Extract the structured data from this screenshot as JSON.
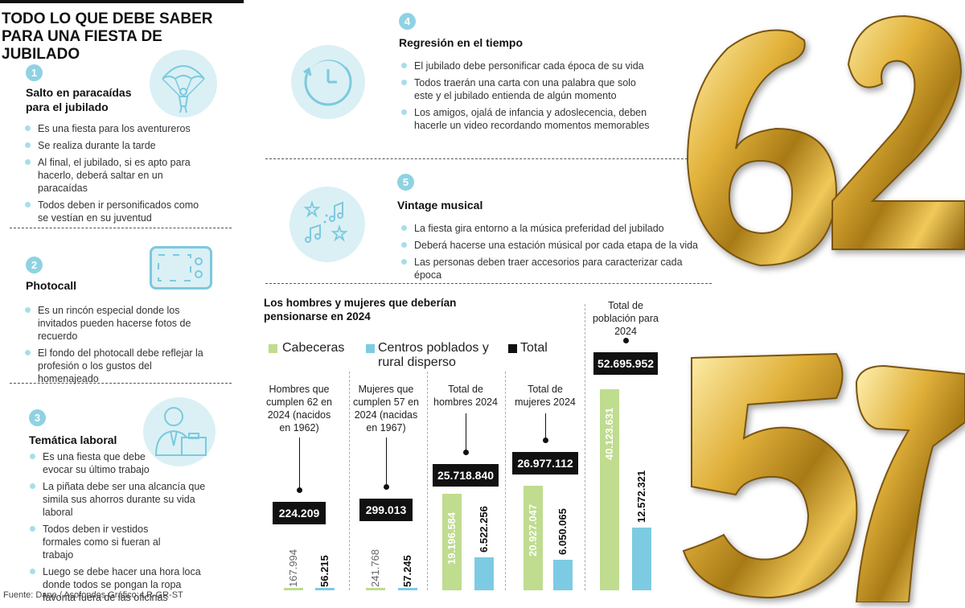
{
  "title": "TODO LO QUE DEBE SABER PARA UNA FIESTA DE JUBILADO",
  "sections": [
    {
      "num": "1",
      "title": "Salto en paracaídas para el jubilado",
      "icon": "parachute-icon",
      "bullets": [
        "Es una fiesta para los aventureros",
        "Se realiza durante la tarde",
        "Al final, el jubilado, si es apto para hacerlo, deberá saltar en un paracaídas",
        "Todos deben ir personificados como se vestían en su juventud"
      ]
    },
    {
      "num": "2",
      "title": "Photocall",
      "icon": "photo-frame-icon",
      "bullets": [
        "Es un rincón especial donde los invitados pueden hacerse fotos de recuerdo",
        "El fondo del photocall debe  reflejar la profesión o los gustos del homenajeado"
      ]
    },
    {
      "num": "3",
      "title": "Temática laboral",
      "icon": "businessman-icon",
      "bullets": [
        "Es una fiesta que debe evocar su último trabajo",
        "La piñata debe ser una alcancía que simila sus ahorros durante su vida laboral",
        "Todos deben ir vestidos formales como si fueran al trabajo",
        "Luego se debe hacer una hora loca donde todos se pongan la ropa favorita fuera de las oficinas"
      ]
    },
    {
      "num": "4",
      "title": "Regresión en el tiempo",
      "icon": "clock-icon",
      "bullets": [
        "El jubilado debe personificar cada época de su vida",
        "Todos traerán una carta con una palabra que solo este y el jubilado entienda de algún momento",
        "Los amigos, ojalá de infancia y adoslecencia, deben hacerle un video recordando momentos memorables"
      ]
    },
    {
      "num": "5",
      "title": "Vintage musical",
      "icon": "music-notes-icon",
      "bullets": [
        "La fiesta gira entorno a la música preferidad del jubilado",
        "Deberá hacerse una estación músical por cada etapa de la vida",
        "Las personas deben traer accesorios para caracterizar cada época"
      ]
    }
  ],
  "balloons": {
    "top": "62",
    "bottom": "57"
  },
  "chart_data": {
    "type": "bar",
    "title": "Los hombres y mujeres que deberían pensionarse en 2024",
    "legend": [
      {
        "name": "Cabeceras",
        "color": "#bfdc8f"
      },
      {
        "name": "Centros poblados y rural disperso",
        "color": "#7dcbe3"
      },
      {
        "name": "Total",
        "color": "#111111"
      }
    ],
    "groups": [
      {
        "label": "Hombres que cumplen 62 en 2024 (nacidos en 1962)",
        "cabeceras": 167994,
        "rural": 56215,
        "total": 224209,
        "cabeceras_label": "167.994",
        "rural_label": "56.215",
        "total_label": "224.209"
      },
      {
        "label": "Mujeres que cumplen 57 en 2024 (nacidas en 1967)",
        "cabeceras": 241768,
        "rural": 57245,
        "total": 299013,
        "cabeceras_label": "241.768",
        "rural_label": "57.245",
        "total_label": "299.013"
      },
      {
        "label": "Total de hombres 2024",
        "cabeceras": 19196584,
        "rural": 6522256,
        "total": 25718840,
        "cabeceras_label": "19.196.584",
        "rural_label": "6.522.256",
        "total_label": "25.718.840"
      },
      {
        "label": "Total de mujeres 2024",
        "cabeceras": 20927047,
        "rural": 6050065,
        "total": 26977112,
        "cabeceras_label": "20.927.047",
        "rural_label": "6.050.065",
        "total_label": "26.977.112"
      },
      {
        "label": "Total de población para 2024",
        "cabeceras": 40123631,
        "rural": 12572321,
        "total": 52695952,
        "cabeceras_label": "40.123.631",
        "rural_label": "12.572.321",
        "total_label": "52.695.952"
      }
    ]
  },
  "footer": "Fuente: Dane / Asofondos    Gráfico: LR-GR-ST"
}
